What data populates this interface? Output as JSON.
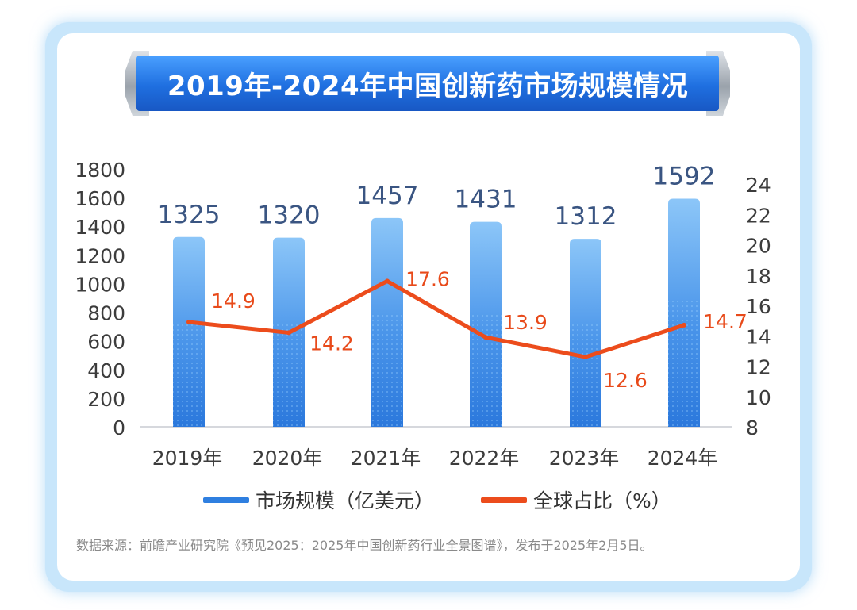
{
  "title": "2019年-2024年中国创新药市场规模情况",
  "colors": {
    "bar": "#3f8de8",
    "line": "#ec4c1c",
    "label_blue": "#3a5582",
    "label_red": "#e84a1a"
  },
  "chart_data": {
    "type": "bar+line",
    "categories": [
      "2019年",
      "2020年",
      "2021年",
      "2022年",
      "2023年",
      "2024年"
    ],
    "series": [
      {
        "name": "市场规模（亿美元）",
        "type": "bar",
        "axis": "left",
        "values": [
          1325,
          1320,
          1457,
          1431,
          1312,
          1592
        ]
      },
      {
        "name": "全球占比（%）",
        "type": "line",
        "axis": "right",
        "values": [
          14.9,
          14.2,
          17.6,
          13.9,
          12.6,
          14.7
        ]
      }
    ],
    "left_axis": {
      "ylim": [
        0,
        1800
      ],
      "ticks": [
        "0",
        "200",
        "400",
        "600",
        "800",
        "1000",
        "1200",
        "1400",
        "1600",
        "1800"
      ]
    },
    "right_axis": {
      "ylim": [
        8,
        24
      ],
      "ticks": [
        "8",
        "10",
        "12",
        "14",
        "16",
        "18",
        "20",
        "22",
        "24"
      ]
    },
    "bar_labels": [
      "1325",
      "1320",
      "1457",
      "1431",
      "1312",
      "1592"
    ],
    "line_labels": [
      "14.9",
      "14.2",
      "17.6",
      "13.9",
      "12.6",
      "14.7"
    ],
    "legend_position": "bottom"
  },
  "legend": {
    "bar_label": "市场规模（亿美元）",
    "line_label": "全球占比（%）"
  },
  "source": "数据来源：前瞻产业研究院《预见2025：2025年中国创新药行业全景图谱》，发布于2025年2月5日。"
}
